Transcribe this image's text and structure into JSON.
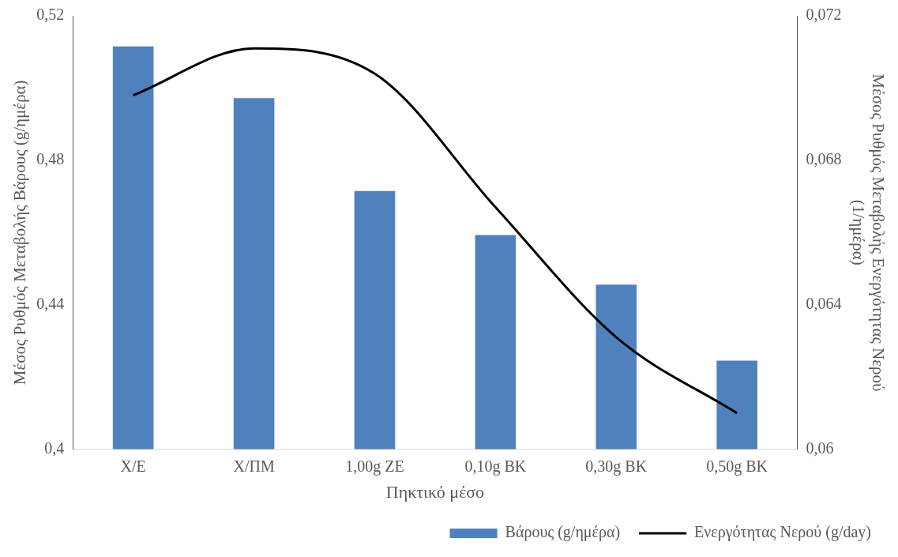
{
  "chart_data": {
    "type": "bar",
    "xlabel": "Πηκτικό μέσο",
    "ylabel": "Μέσος Ρυθμός Μεταβολής Βάρους (g/ημέρα)",
    "y2label": "Μέσος Ρυθμός Μεταβολής Ενεργότητας Νερού\n(1/ημέρα)",
    "categories": [
      "Χ/Ε",
      "Χ/ΠΜ",
      "1,00g ZE",
      "0,10g BK",
      "0,30g BK",
      "0,50g BK"
    ],
    "series": [
      {
        "name": "Βάρους (g/ημέρα)",
        "color": "#4f81bd",
        "values": [
          0.5115,
          0.4972,
          0.4715,
          0.4593,
          0.4456,
          0.4245
        ]
      },
      {
        "name": "Ενεργότητας Νερού (g/day)",
        "type": "line",
        "axis": "y2",
        "color": "#000000",
        "values": [
          0.0698,
          0.0711,
          0.0704,
          0.0667,
          0.0631,
          0.061
        ]
      }
    ],
    "ylim": [
      0.4,
      0.52
    ],
    "yticks": [
      {
        "value": 0.4,
        "label": "0,4"
      },
      {
        "value": 0.44,
        "label": "0,44"
      },
      {
        "value": 0.48,
        "label": "0,48"
      },
      {
        "value": 0.52,
        "label": "0,52"
      }
    ],
    "y2lim": [
      0.06,
      0.072
    ],
    "y2ticks": [
      {
        "value": 0.06,
        "label": "0,06"
      },
      {
        "value": 0.064,
        "label": "0,064"
      },
      {
        "value": 0.068,
        "label": "0,068"
      },
      {
        "value": 0.072,
        "label": "0,072"
      }
    ],
    "grid": false,
    "legend": "bottom right",
    "marker": "none",
    "line_style": "solid"
  }
}
